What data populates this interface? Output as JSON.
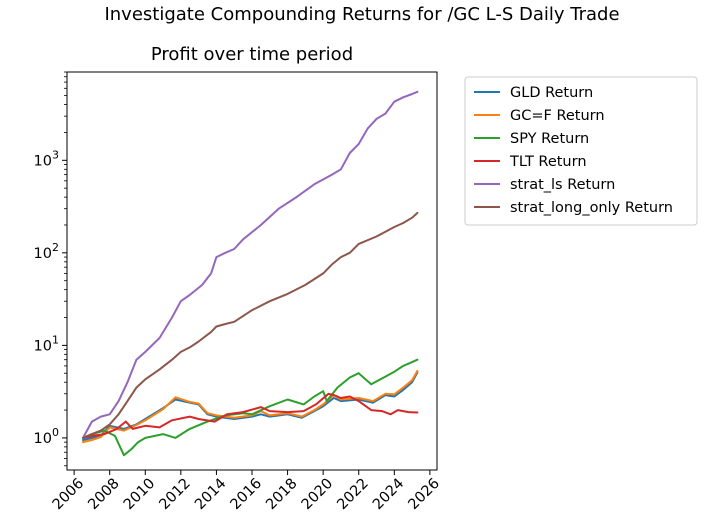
{
  "figure": {
    "suptitle": "Investigate Compounding Returns for /GC L-S Daily Trade"
  },
  "chart_data": {
    "type": "line",
    "title": "Profit over time period",
    "xlabel": "",
    "ylabel": "",
    "yscale": "log",
    "xlim": [
      2005.6,
      2026.4
    ],
    "ylim": [
      0.45,
      9000
    ],
    "xticks": [
      2006,
      2008,
      2010,
      2012,
      2014,
      2016,
      2018,
      2020,
      2022,
      2024,
      2026
    ],
    "yticks": [
      {
        "value": 1,
        "base": "10",
        "exp": "0"
      },
      {
        "value": 10,
        "base": "10",
        "exp": "1"
      },
      {
        "value": 100,
        "base": "10",
        "exp": "2"
      },
      {
        "value": 1000,
        "base": "10",
        "exp": "3"
      }
    ],
    "grid": false,
    "legend_position": "outside-right-top",
    "series": [
      {
        "name": "GLD Return",
        "color": "#1f77b4",
        "x": [
          2006.5,
          2007.0,
          2007.5,
          2008.0,
          2008.8,
          2009.5,
          2010.0,
          2011.0,
          2011.7,
          2012.5,
          2013.0,
          2013.5,
          2014.0,
          2015.0,
          2016.0,
          2016.5,
          2017.0,
          2018.0,
          2018.8,
          2019.5,
          2020.0,
          2020.6,
          2021.0,
          2022.0,
          2022.8,
          2023.5,
          2024.0,
          2024.5,
          2025.0,
          2025.3
        ],
        "y": [
          0.95,
          1.0,
          1.05,
          1.35,
          1.25,
          1.4,
          1.6,
          2.1,
          2.6,
          2.4,
          2.3,
          1.8,
          1.7,
          1.6,
          1.7,
          1.8,
          1.7,
          1.8,
          1.65,
          1.95,
          2.2,
          2.7,
          2.5,
          2.6,
          2.4,
          2.9,
          2.8,
          3.3,
          4.0,
          5.1
        ]
      },
      {
        "name": "GC=F Return",
        "color": "#ff7f0e",
        "x": [
          2006.5,
          2007.0,
          2007.5,
          2008.0,
          2008.8,
          2009.5,
          2010.0,
          2011.0,
          2011.7,
          2012.5,
          2013.0,
          2013.5,
          2014.0,
          2015.0,
          2016.0,
          2016.5,
          2017.0,
          2018.0,
          2018.8,
          2019.5,
          2020.0,
          2020.6,
          2021.0,
          2022.0,
          2022.8,
          2023.5,
          2024.0,
          2024.5,
          2025.0,
          2025.3
        ],
        "y": [
          0.9,
          0.95,
          1.02,
          1.3,
          1.2,
          1.38,
          1.55,
          2.05,
          2.75,
          2.45,
          2.35,
          1.85,
          1.75,
          1.65,
          1.75,
          1.95,
          1.75,
          1.85,
          1.7,
          2.0,
          2.3,
          2.9,
          2.6,
          2.7,
          2.5,
          3.0,
          2.95,
          3.5,
          4.2,
          5.3
        ]
      },
      {
        "name": "SPY Return",
        "color": "#2ca02c",
        "x": [
          2006.5,
          2007.0,
          2007.7,
          2008.3,
          2008.8,
          2009.2,
          2009.6,
          2010.0,
          2011.0,
          2011.7,
          2012.5,
          2013.5,
          2014.5,
          2015.5,
          2016.0,
          2017.0,
          2018.0,
          2018.9,
          2019.5,
          2020.0,
          2020.2,
          2020.8,
          2021.5,
          2022.0,
          2022.7,
          2023.5,
          2024.0,
          2024.5,
          2025.0,
          2025.3
        ],
        "y": [
          1.0,
          1.1,
          1.2,
          1.05,
          0.65,
          0.75,
          0.9,
          1.0,
          1.1,
          1.0,
          1.25,
          1.5,
          1.75,
          1.85,
          1.8,
          2.2,
          2.6,
          2.3,
          2.8,
          3.2,
          2.5,
          3.5,
          4.5,
          5.0,
          3.8,
          4.6,
          5.2,
          6.0,
          6.6,
          7.0
        ]
      },
      {
        "name": "TLT Return",
        "color": "#d62728",
        "x": [
          2006.5,
          2007.0,
          2007.7,
          2008.4,
          2008.9,
          2009.3,
          2010.0,
          2010.8,
          2011.5,
          2012.5,
          2013.0,
          2013.9,
          2014.6,
          2015.5,
          2016.5,
          2017.0,
          2018.0,
          2018.9,
          2019.6,
          2020.3,
          2020.6,
          2021.0,
          2021.5,
          2022.0,
          2022.7,
          2023.3,
          2023.8,
          2024.2,
          2024.8,
          2025.3
        ],
        "y": [
          1.0,
          1.05,
          1.1,
          1.25,
          1.5,
          1.25,
          1.35,
          1.3,
          1.55,
          1.7,
          1.6,
          1.5,
          1.8,
          1.9,
          2.15,
          1.95,
          1.9,
          1.95,
          2.3,
          3.0,
          2.9,
          2.7,
          2.8,
          2.5,
          2.0,
          1.95,
          1.8,
          2.0,
          1.9,
          1.88
        ]
      },
      {
        "name": "strat_ls Return",
        "color": "#9467bd",
        "x": [
          2006.5,
          2007.0,
          2007.5,
          2008.0,
          2008.5,
          2009.0,
          2009.5,
          2010.0,
          2010.8,
          2011.5,
          2012.0,
          2012.5,
          2013.2,
          2013.7,
          2014.0,
          2014.5,
          2015.0,
          2015.5,
          2016.5,
          2017.5,
          2018.5,
          2019.5,
          2020.5,
          2021.0,
          2021.5,
          2022.0,
          2022.5,
          2023.0,
          2023.5,
          2024.0,
          2024.5,
          2025.0,
          2025.3
        ],
        "y": [
          1.0,
          1.5,
          1.7,
          1.8,
          2.5,
          4.0,
          7.0,
          8.5,
          12,
          20,
          30,
          35,
          45,
          60,
          90,
          100,
          110,
          140,
          200,
          300,
          400,
          550,
          700,
          800,
          1200,
          1500,
          2200,
          2800,
          3200,
          4300,
          4800,
          5200,
          5500
        ]
      },
      {
        "name": "strat_long_only Return",
        "color": "#8c564b",
        "x": [
          2006.5,
          2007.0,
          2007.5,
          2008.0,
          2008.5,
          2009.0,
          2009.5,
          2010.0,
          2010.8,
          2011.5,
          2012.0,
          2012.5,
          2013.0,
          2013.7,
          2014.0,
          2014.5,
          2015.0,
          2016.0,
          2017.0,
          2018.0,
          2019.0,
          2020.0,
          2020.5,
          2021.0,
          2021.5,
          2022.0,
          2023.0,
          2024.0,
          2024.5,
          2025.0,
          2025.3
        ],
        "y": [
          1.0,
          1.1,
          1.2,
          1.4,
          1.8,
          2.5,
          3.5,
          4.3,
          5.5,
          7.0,
          8.5,
          9.5,
          11,
          14,
          16,
          17,
          18,
          24,
          30,
          36,
          45,
          60,
          75,
          90,
          100,
          125,
          150,
          190,
          210,
          240,
          270
        ]
      }
    ]
  },
  "legend": {
    "items": [
      {
        "label": "GLD Return",
        "color": "#1f77b4"
      },
      {
        "label": "GC=F Return",
        "color": "#ff7f0e"
      },
      {
        "label": "SPY Return",
        "color": "#2ca02c"
      },
      {
        "label": "TLT Return",
        "color": "#d62728"
      },
      {
        "label": "strat_ls Return",
        "color": "#9467bd"
      },
      {
        "label": "strat_long_only Return",
        "color": "#8c564b"
      }
    ]
  }
}
